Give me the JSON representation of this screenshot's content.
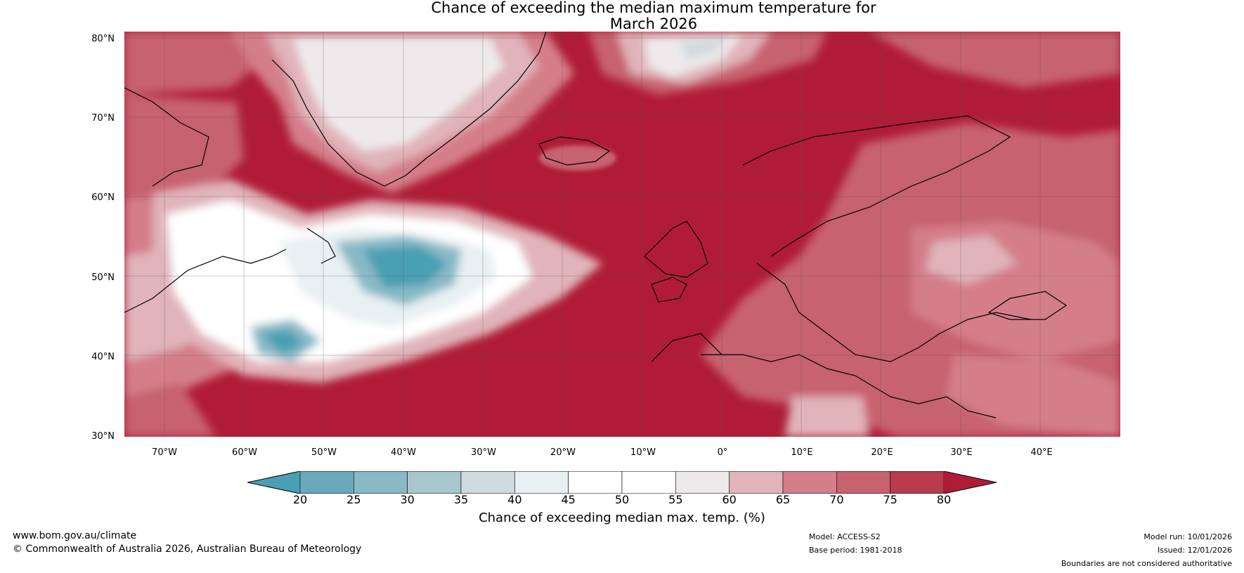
{
  "title": {
    "line1": "Chance of exceeding the median maximum temperature for",
    "line2": "March 2026"
  },
  "map": {
    "lat_labels": [
      "80°N",
      "70°N",
      "60°N",
      "50°N",
      "40°N",
      "30°N"
    ],
    "lon_labels": [
      "70°W",
      "60°W",
      "50°W",
      "40°W",
      "30°W",
      "20°W",
      "10°W",
      "0°",
      "10°E",
      "20°E",
      "30°E",
      "40°E"
    ],
    "lat_range": [
      30,
      81
    ],
    "lon_range": [
      -75,
      50
    ]
  },
  "colorbar": {
    "label": "Chance of exceeding median max. temp. (%)",
    "ticks": [
      "20",
      "25",
      "30",
      "35",
      "40",
      "45",
      "50",
      "55",
      "60",
      "65",
      "70",
      "75",
      "80"
    ],
    "colors": [
      "#4a9fb3",
      "#6aa9b9",
      "#89b9c6",
      "#a8c7cd",
      "#cfdbe0",
      "#e8f0f2",
      "#ffffff",
      "#ffffff",
      "#eeeaeb",
      "#e0b4ba",
      "#d47e8a",
      "#c7626f",
      "#b83b4e",
      "#b01c37"
    ]
  },
  "footer": {
    "website": "www.bom.gov.au/climate",
    "copyright": "© Commonwealth of Australia 2026, Australian Bureau of Meteorology",
    "model": "Model: ACCESS-S2",
    "base_period": "Base period: 1981-2018",
    "model_run": "Model run: 10/01/2026",
    "issued": "Issued: 12/01/2026",
    "disclaimer": "Boundaries are not considered authoritative"
  }
}
